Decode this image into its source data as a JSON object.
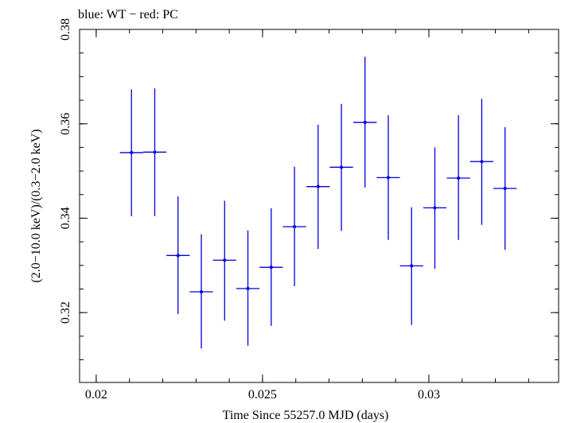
{
  "chart_data": {
    "type": "scatter",
    "title": "blue: WT − red: PC",
    "xlabel": "Time Since 55257.0 MJD (days)",
    "ylabel": "(2.0−10.0 keV)/(0.3−2.0 keV)",
    "xlim": [
      0.0195,
      0.0339
    ],
    "ylim": [
      0.3052,
      0.38
    ],
    "xticks": [
      {
        "value": 0.02,
        "label": "0.02"
      },
      {
        "value": 0.025,
        "label": "0.025"
      },
      {
        "value": 0.03,
        "label": "0.03"
      }
    ],
    "yticks": [
      {
        "value": 0.32,
        "label": "0.32"
      },
      {
        "value": 0.34,
        "label": "0.34"
      },
      {
        "value": 0.36,
        "label": "0.36"
      },
      {
        "value": 0.38,
        "label": "0.38"
      }
    ],
    "x_minor_step": 0.001,
    "y_minor_step": 0.005,
    "grid": false,
    "series": [
      {
        "color": "#0000dd",
        "points": [
          {
            "x": 0.02106,
            "y": 0.3539,
            "xerr": 0.00035,
            "ylo": 0.3404,
            "yhi": 0.3673
          },
          {
            "x": 0.02176,
            "y": 0.354,
            "xerr": 0.00035,
            "ylo": 0.3404,
            "yhi": 0.3675
          },
          {
            "x": 0.02246,
            "y": 0.3321,
            "xerr": 0.00035,
            "ylo": 0.3197,
            "yhi": 0.3446
          },
          {
            "x": 0.02316,
            "y": 0.3244,
            "xerr": 0.00035,
            "ylo": 0.3124,
            "yhi": 0.3366
          },
          {
            "x": 0.02386,
            "y": 0.3311,
            "xerr": 0.00035,
            "ylo": 0.3183,
            "yhi": 0.3437
          },
          {
            "x": 0.02456,
            "y": 0.3251,
            "xerr": 0.00035,
            "ylo": 0.313,
            "yhi": 0.3374
          },
          {
            "x": 0.02526,
            "y": 0.3296,
            "xerr": 0.00035,
            "ylo": 0.3172,
            "yhi": 0.3421
          },
          {
            "x": 0.02596,
            "y": 0.3382,
            "xerr": 0.00035,
            "ylo": 0.3256,
            "yhi": 0.3509
          },
          {
            "x": 0.02667,
            "y": 0.3467,
            "xerr": 0.00035,
            "ylo": 0.3335,
            "yhi": 0.3598
          },
          {
            "x": 0.02737,
            "y": 0.3508,
            "xerr": 0.00035,
            "ylo": 0.3373,
            "yhi": 0.3642
          },
          {
            "x": 0.02808,
            "y": 0.3603,
            "xerr": 0.00035,
            "ylo": 0.3465,
            "yhi": 0.3742
          },
          {
            "x": 0.02878,
            "y": 0.3486,
            "xerr": 0.00035,
            "ylo": 0.3354,
            "yhi": 0.3618
          },
          {
            "x": 0.02948,
            "y": 0.3299,
            "xerr": 0.00035,
            "ylo": 0.3174,
            "yhi": 0.3423
          },
          {
            "x": 0.03018,
            "y": 0.3422,
            "xerr": 0.00035,
            "ylo": 0.3293,
            "yhi": 0.355
          },
          {
            "x": 0.03089,
            "y": 0.3485,
            "xerr": 0.00035,
            "ylo": 0.3354,
            "yhi": 0.3618
          },
          {
            "x": 0.03159,
            "y": 0.352,
            "xerr": 0.00035,
            "ylo": 0.3386,
            "yhi": 0.3653
          },
          {
            "x": 0.03229,
            "y": 0.3463,
            "xerr": 0.00035,
            "ylo": 0.3333,
            "yhi": 0.3593
          }
        ]
      }
    ]
  }
}
